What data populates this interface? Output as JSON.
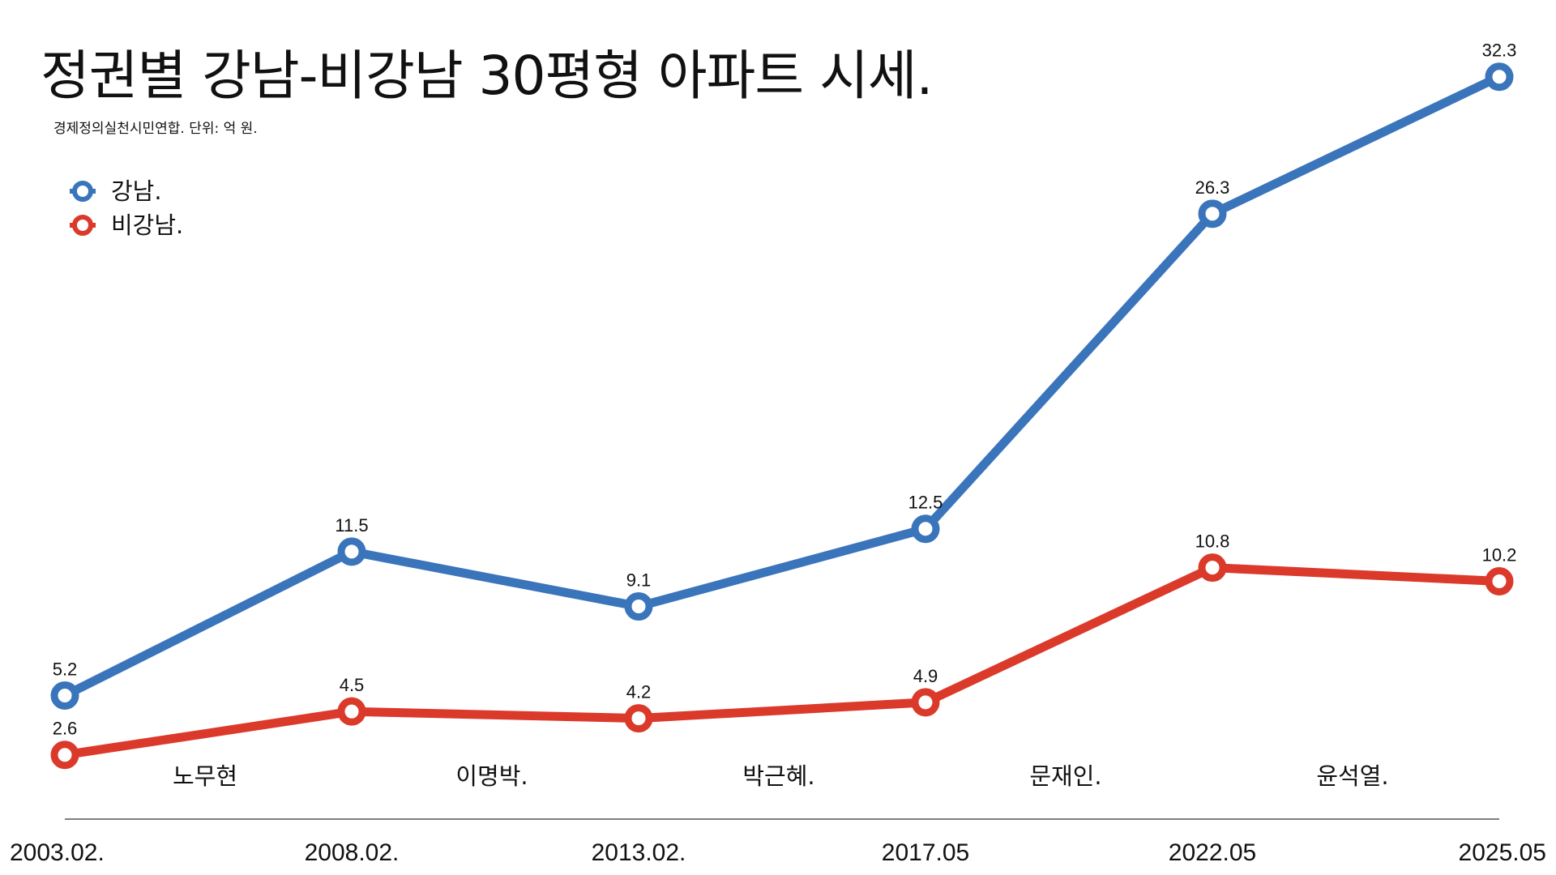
{
  "title": "정권별 강남-비강남 30평형 아파트 시세.",
  "subtitle": "경제정의실천시민연합. 단위: 억 원.",
  "chart_data": {
    "type": "line",
    "title": "정권별 강남-비강남 30평형 아파트 시세.",
    "subtitle": "경제정의실천시민연합. 단위: 억 원.",
    "categories": [
      "2003.02.",
      "2008.02.",
      "2013.02.",
      "2017.05",
      "2022.05",
      "2025.05"
    ],
    "series": [
      {
        "name": "강남.",
        "color": "#3a75bb",
        "values": [
          5.2,
          11.5,
          9.1,
          12.5,
          26.3,
          32.3
        ]
      },
      {
        "name": "비강남.",
        "color": "#db3a2b",
        "values": [
          2.6,
          4.5,
          4.2,
          4.9,
          10.8,
          10.2
        ]
      }
    ],
    "eras": [
      "노무현",
      "이명박.",
      "박근혜.",
      "문재인.",
      "윤석열."
    ],
    "legend": "top-left",
    "grid": false,
    "xlabel": "",
    "ylabel": "",
    "ylim": [
      0,
      34
    ]
  }
}
